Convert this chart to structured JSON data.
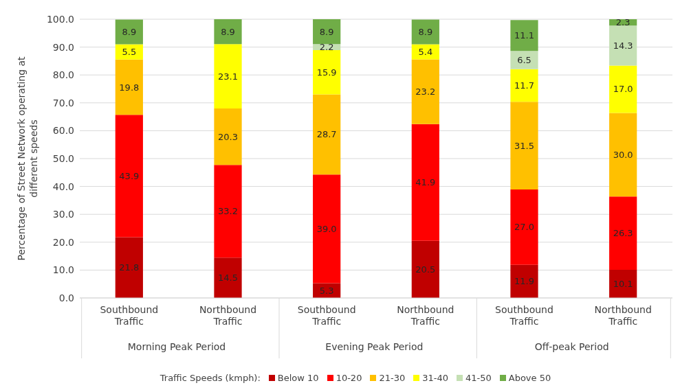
{
  "chart_data": {
    "type": "bar",
    "stacked": true,
    "categories": [
      "Southbound Traffic",
      "Northbound Traffic",
      "Southbound Traffic",
      "Northbound Traffic",
      "Southbound Traffic",
      "Northbound Traffic"
    ],
    "annotations": [
      "Morning Peak Period",
      "Evening Peak Period",
      "Off-peak Period"
    ],
    "ylabel": "Percentage of Street Network operating at different speeds",
    "legend_title": "Traffic Speeds (kmph):",
    "series": [
      {
        "name": "Below 10",
        "color": "#c00000",
        "values": [
          21.8,
          14.5,
          5.3,
          20.5,
          11.9,
          10.1
        ],
        "value_labels": [
          "21.8",
          "14.5",
          "5.3",
          "20.5",
          "11.9",
          "10.1"
        ]
      },
      {
        "name": "10-20",
        "color": "#ff0000",
        "values": [
          43.9,
          33.2,
          39.0,
          41.9,
          27.0,
          26.3
        ],
        "value_labels": [
          "43.9",
          "33.2",
          "39.0",
          "41.9",
          "27.0",
          "26.3"
        ]
      },
      {
        "name": "21-30",
        "color": "#ffc000",
        "values": [
          19.8,
          20.3,
          28.7,
          23.2,
          31.5,
          30.0
        ],
        "value_labels": [
          "19.8",
          "20.3",
          "28.7",
          "23.2",
          "31.5",
          "30.0"
        ]
      },
      {
        "name": "31-40",
        "color": "#ffff00",
        "values": [
          5.5,
          23.1,
          15.9,
          5.4,
          11.7,
          17.0
        ],
        "value_labels": [
          "5.5",
          "23.1",
          "15.9",
          "5.4",
          "11.7",
          "17.0"
        ]
      },
      {
        "name": "41-50",
        "color": "#c5e0b4",
        "values": [
          null,
          null,
          2.2,
          null,
          6.5,
          14.3
        ],
        "value_labels": [
          null,
          null,
          "2.2",
          null,
          "6.5",
          "14.3"
        ]
      },
      {
        "name": "Above 50",
        "color": "#70ad47",
        "values": [
          8.9,
          8.9,
          8.9,
          8.9,
          11.1,
          2.3
        ],
        "value_labels": [
          "8.9",
          "8.9",
          "8.9",
          "8.9",
          "11.1",
          "2.3"
        ]
      }
    ],
    "ylim": [
      0,
      100
    ],
    "yticks": [
      {
        "value": 0,
        "label": "0.0"
      },
      {
        "value": 10,
        "label": "10.0"
      },
      {
        "value": 20,
        "label": "20.0"
      },
      {
        "value": 30,
        "label": "30.0"
      },
      {
        "value": 40,
        "label": "40.0"
      },
      {
        "value": 50,
        "label": "50.0"
      },
      {
        "value": 60,
        "label": "60.0"
      },
      {
        "value": 70,
        "label": "70.0"
      },
      {
        "value": 80,
        "label": "80.0"
      },
      {
        "value": 90,
        "label": "90.0"
      },
      {
        "value": 100,
        "label": "100.0"
      }
    ],
    "grid": "y",
    "legend": "bottom"
  }
}
